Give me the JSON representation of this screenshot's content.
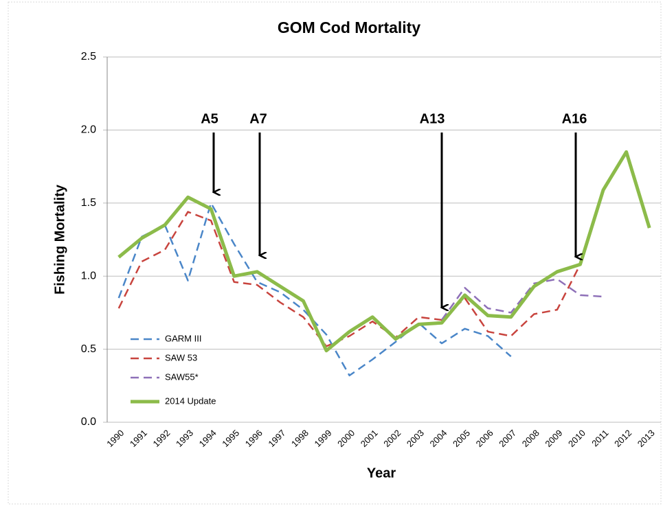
{
  "chart_data": {
    "type": "line",
    "title": "GOM Cod Mortality",
    "x_label": "Year",
    "y_label": "Fishing Mortality",
    "categories": [
      "1990",
      "1991",
      "1992",
      "1993",
      "1994",
      "1995",
      "1996",
      "1997",
      "1998",
      "1999",
      "2000",
      "2001",
      "2002",
      "2003",
      "2004",
      "2005",
      "2006",
      "2007",
      "2008",
      "2009",
      "2010",
      "2011",
      "2012",
      "2013"
    ],
    "series": [
      {
        "name": "GARM III",
        "color": "#4a86c8",
        "dashed": true,
        "values": [
          0.85,
          1.27,
          1.35,
          0.97,
          1.5,
          1.22,
          0.96,
          0.89,
          0.77,
          0.6,
          0.32,
          0.43,
          0.55,
          0.68,
          0.54,
          0.64,
          0.59,
          0.45,
          null,
          null,
          null,
          null,
          null,
          null
        ]
      },
      {
        "name": "SAW 53",
        "color": "#c8443e",
        "dashed": true,
        "values": [
          0.78,
          1.1,
          1.18,
          1.44,
          1.38,
          0.96,
          0.94,
          0.82,
          0.72,
          0.52,
          0.59,
          0.69,
          0.58,
          0.72,
          0.7,
          0.85,
          0.62,
          0.59,
          0.74,
          0.77,
          1.08,
          null,
          null,
          null
        ]
      },
      {
        "name": "SAW55*",
        "color": "#8e70b8",
        "dashed": true,
        "values": [
          null,
          null,
          null,
          null,
          null,
          null,
          null,
          null,
          null,
          null,
          null,
          null,
          null,
          null,
          0.7,
          0.92,
          0.78,
          0.75,
          0.95,
          0.98,
          0.87,
          0.86,
          null,
          null
        ]
      },
      {
        "name": "2014 Update",
        "color": "#8cbb4a",
        "dashed": false,
        "values": [
          1.13,
          1.26,
          1.35,
          1.54,
          1.46,
          1.0,
          1.03,
          0.93,
          0.83,
          0.49,
          0.62,
          0.72,
          0.57,
          0.67,
          0.68,
          0.87,
          0.73,
          0.72,
          0.93,
          1.03,
          1.08,
          1.59,
          1.85,
          1.33
        ]
      }
    ],
    "ylim": [
      0,
      2.5
    ],
    "yticks": [
      {
        "value": 0,
        "label": "0.0"
      },
      {
        "value": 0.5,
        "label": "0.5"
      },
      {
        "value": 1,
        "label": "1.0"
      },
      {
        "value": 1.5,
        "label": "1.5"
      },
      {
        "value": 2,
        "label": "2.0"
      },
      {
        "value": 2.5,
        "label": "2.5"
      }
    ],
    "grid": true,
    "legend": "lower left",
    "annotations": [
      {
        "text": "A5"
      },
      {
        "text": "A7"
      },
      {
        "text": "A13"
      },
      {
        "text": "A16"
      }
    ]
  }
}
